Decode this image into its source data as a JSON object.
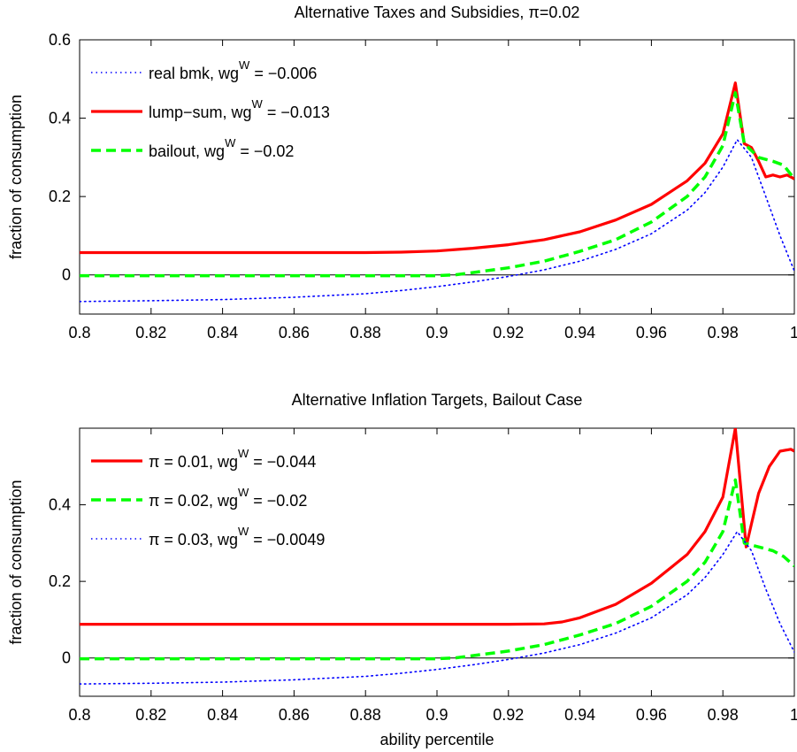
{
  "chart_data": [
    {
      "type": "line",
      "title": "Alternative Taxes and Subsidies,  π=0.02",
      "xlabel": "",
      "ylabel": "fraction of consumption",
      "xlim": [
        0.8,
        1.0
      ],
      "ylim": [
        -0.1,
        0.6
      ],
      "xticks": [
        0.8,
        0.82,
        0.84,
        0.86,
        0.88,
        0.9,
        0.92,
        0.94,
        0.96,
        0.98,
        1
      ],
      "xtick_labels": [
        "0.8",
        "0.82",
        "0.84",
        "0.86",
        "0.88",
        "0.9",
        "0.92",
        "0.94",
        "0.96",
        "0.98",
        "1"
      ],
      "yticks": [
        0,
        0.2,
        0.4,
        0.6
      ],
      "ytick_labels": [
        "0",
        "0.2",
        "0.4",
        "0.6"
      ],
      "zero_line": true,
      "grid": false,
      "legend_position": "top-left",
      "series": [
        {
          "legend_main": "real bmk, wg",
          "legend_sup": "W",
          "legend_tail": " = −0.006",
          "color": "#0000ff",
          "style": "dotted",
          "x": [
            0.8,
            0.82,
            0.84,
            0.86,
            0.88,
            0.89,
            0.9,
            0.91,
            0.92,
            0.93,
            0.94,
            0.95,
            0.96,
            0.97,
            0.975,
            0.98,
            0.984,
            0.988,
            0.992,
            0.996,
            1.0
          ],
          "y": [
            -0.068,
            -0.066,
            -0.063,
            -0.057,
            -0.048,
            -0.04,
            -0.03,
            -0.018,
            -0.004,
            0.013,
            0.035,
            0.065,
            0.105,
            0.165,
            0.21,
            0.275,
            0.345,
            0.3,
            0.2,
            0.1,
            0.01
          ]
        },
        {
          "legend_main": "lump−sum, wg",
          "legend_sup": "W",
          "legend_tail": " = −0.013",
          "color": "#ff0000",
          "style": "solid",
          "x": [
            0.8,
            0.82,
            0.84,
            0.86,
            0.88,
            0.89,
            0.9,
            0.91,
            0.92,
            0.93,
            0.94,
            0.95,
            0.96,
            0.97,
            0.975,
            0.98,
            0.9835,
            0.986,
            0.988,
            0.99,
            0.992,
            0.994,
            0.996,
            0.998,
            1.0
          ],
          "y": [
            0.057,
            0.057,
            0.057,
            0.057,
            0.057,
            0.058,
            0.061,
            0.068,
            0.077,
            0.09,
            0.11,
            0.14,
            0.18,
            0.24,
            0.285,
            0.36,
            0.49,
            0.335,
            0.325,
            0.29,
            0.25,
            0.255,
            0.25,
            0.255,
            0.245
          ]
        },
        {
          "legend_main": "bailout, wg",
          "legend_sup": "W",
          "legend_tail": " = −0.02",
          "color": "#00ff00",
          "style": "dashed",
          "x": [
            0.8,
            0.82,
            0.84,
            0.86,
            0.88,
            0.9,
            0.905,
            0.91,
            0.92,
            0.93,
            0.94,
            0.95,
            0.96,
            0.97,
            0.975,
            0.98,
            0.9835,
            0.986,
            0.99,
            0.994,
            0.997,
            1.0
          ],
          "y": [
            -0.002,
            -0.002,
            -0.002,
            -0.002,
            -0.002,
            -0.002,
            0.0,
            0.006,
            0.018,
            0.035,
            0.06,
            0.09,
            0.135,
            0.2,
            0.25,
            0.33,
            0.465,
            0.335,
            0.3,
            0.29,
            0.28,
            0.245
          ]
        }
      ]
    },
    {
      "type": "line",
      "title": "Alternative Inflation Targets, Bailout Case",
      "xlabel": "ability percentile",
      "ylabel": "fraction of consumption",
      "xlim": [
        0.8,
        1.0
      ],
      "ylim": [
        -0.1,
        0.6
      ],
      "xticks": [
        0.8,
        0.82,
        0.84,
        0.86,
        0.88,
        0.9,
        0.92,
        0.94,
        0.96,
        0.98,
        1
      ],
      "xtick_labels": [
        "0.8",
        "0.82",
        "0.84",
        "0.86",
        "0.88",
        "0.9",
        "0.92",
        "0.94",
        "0.96",
        "0.98",
        "1"
      ],
      "yticks": [
        0,
        0.2,
        0.4
      ],
      "ytick_labels": [
        "0",
        "0.2",
        "0.4"
      ],
      "zero_line": true,
      "grid": false,
      "legend_position": "top-left",
      "series": [
        {
          "legend_main": "π = 0.01, wg",
          "legend_sup": "W",
          "legend_tail": " = −0.044",
          "color": "#ff0000",
          "style": "solid",
          "x": [
            0.8,
            0.82,
            0.84,
            0.86,
            0.88,
            0.9,
            0.92,
            0.93,
            0.935,
            0.94,
            0.95,
            0.96,
            0.97,
            0.975,
            0.98,
            0.9835,
            0.9865,
            0.988,
            0.99,
            0.993,
            0.996,
            0.999,
            1.0
          ],
          "y": [
            0.088,
            0.088,
            0.088,
            0.088,
            0.088,
            0.088,
            0.088,
            0.089,
            0.094,
            0.105,
            0.14,
            0.195,
            0.27,
            0.33,
            0.42,
            0.6,
            0.29,
            0.35,
            0.43,
            0.5,
            0.54,
            0.545,
            0.54
          ]
        },
        {
          "legend_main": "π = 0.02, wg",
          "legend_sup": "W",
          "legend_tail": " = −0.02",
          "color": "#00ff00",
          "style": "dashed",
          "x": [
            0.8,
            0.82,
            0.84,
            0.86,
            0.88,
            0.9,
            0.905,
            0.91,
            0.92,
            0.93,
            0.94,
            0.95,
            0.96,
            0.97,
            0.975,
            0.98,
            0.9835,
            0.986,
            0.99,
            0.994,
            0.997,
            1.0
          ],
          "y": [
            -0.002,
            -0.002,
            -0.002,
            -0.002,
            -0.002,
            -0.002,
            0.0,
            0.006,
            0.018,
            0.035,
            0.06,
            0.09,
            0.135,
            0.2,
            0.25,
            0.33,
            0.465,
            0.3,
            0.29,
            0.28,
            0.265,
            0.24
          ]
        },
        {
          "legend_main": "π = 0.03, wg",
          "legend_sup": "W",
          "legend_tail": " = −0.0049",
          "color": "#0000ff",
          "style": "dotted",
          "x": [
            0.8,
            0.82,
            0.84,
            0.86,
            0.88,
            0.89,
            0.9,
            0.91,
            0.92,
            0.93,
            0.94,
            0.95,
            0.96,
            0.97,
            0.975,
            0.98,
            0.984,
            0.988,
            0.992,
            0.996,
            1.0
          ],
          "y": [
            -0.068,
            -0.066,
            -0.063,
            -0.057,
            -0.048,
            -0.04,
            -0.03,
            -0.018,
            -0.004,
            0.013,
            0.035,
            0.065,
            0.105,
            0.165,
            0.21,
            0.27,
            0.33,
            0.28,
            0.18,
            0.09,
            0.015
          ]
        }
      ]
    }
  ]
}
